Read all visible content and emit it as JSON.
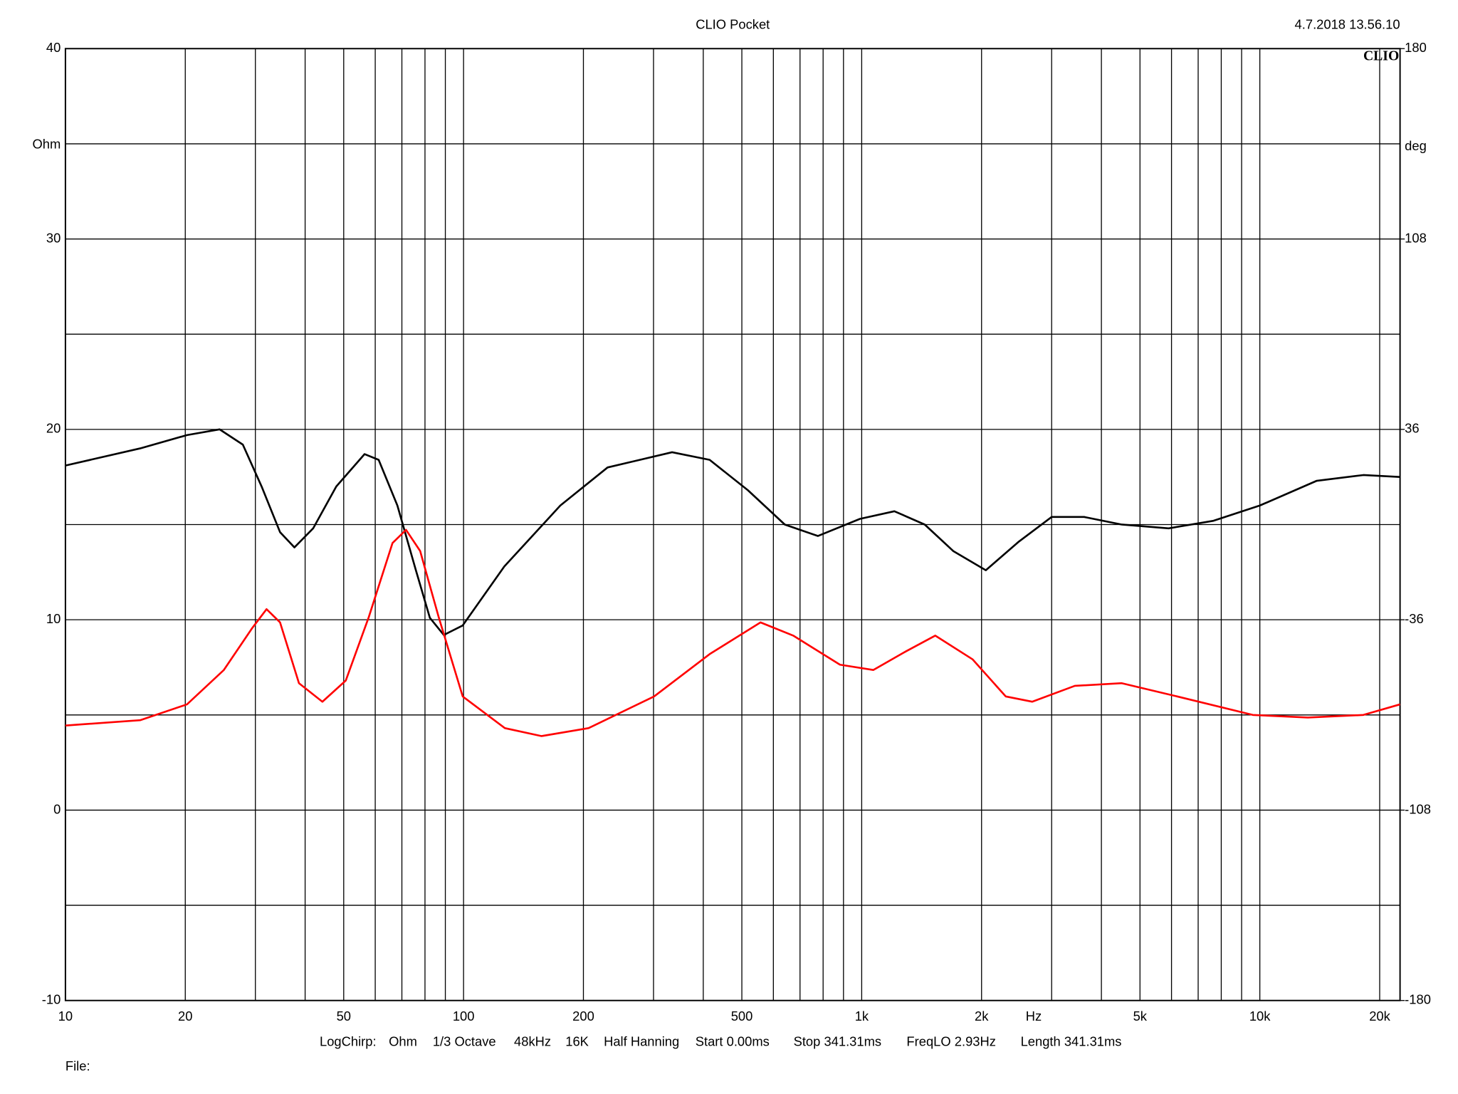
{
  "chart_data": {
    "type": "line",
    "title": "CLIO Pocket",
    "timestamp": "4.7.2018 13.56.10",
    "logo": "CLIO",
    "y_label": "Ohm",
    "y2_label": "deg",
    "x_unit": "Hz",
    "settings": [
      "LogChirp:",
      "Ohm",
      "1/3 Octave",
      "48kHz",
      "16K",
      "Half Hanning",
      "Start 0.00ms",
      "Stop 341.31ms",
      "FreqLO 2.93Hz",
      "Length 341.31ms"
    ],
    "file_label": "File:",
    "xscale": "log",
    "xlim": [
      10,
      22500
    ],
    "xticks": [
      10,
      20,
      50,
      100,
      200,
      500,
      {
        "value": 1000,
        "label": "1k"
      },
      {
        "value": 2000,
        "label": "2k"
      },
      {
        "value": 5000,
        "label": "5k"
      },
      {
        "value": 10000,
        "label": "10k"
      },
      {
        "value": 20000,
        "label": "20k"
      }
    ],
    "xgrid": [
      30,
      40,
      60,
      70,
      80,
      90,
      300,
      400,
      600,
      700,
      800,
      900,
      3000,
      4000,
      6000,
      7000,
      8000,
      9000
    ],
    "ylim": [
      -10,
      40
    ],
    "yticks": [
      -10,
      0,
      10,
      20,
      30,
      40
    ],
    "ygrid": [
      -5,
      5,
      15,
      25,
      35
    ],
    "y2lim": [
      -180,
      180
    ],
    "y2ticks": [
      180,
      108,
      36,
      -36,
      -108,
      -180
    ],
    "grid": true,
    "series": [
      {
        "name": "Impedance",
        "color": "#000000",
        "axis": "y",
        "x": [
          10,
          15.4,
          20.2,
          24.4,
          27.9,
          31.1,
          34.6,
          37.6,
          41.9,
          47.9,
          56.4,
          61.2,
          68.2,
          75.9,
          82.3,
          89.2,
          99.5,
          126.6,
          175,
          230,
          334,
          415,
          518,
          641,
          776,
          990,
          1208,
          1440,
          1700,
          2050,
          2480,
          3000,
          3620,
          4500,
          5900,
          7650,
          10000,
          13900,
          18200,
          22500
        ],
        "values": [
          18.1,
          19.0,
          19.7,
          20.0,
          19.2,
          17.0,
          14.6,
          13.8,
          14.8,
          17.0,
          18.7,
          18.4,
          16.0,
          12.6,
          10.1,
          9.2,
          9.7,
          12.8,
          16.0,
          18.0,
          18.8,
          18.4,
          16.8,
          15.0,
          14.4,
          15.3,
          15.7,
          15.0,
          13.6,
          12.6,
          14.1,
          15.4,
          15.4,
          15.0,
          14.8,
          15.2,
          16.0,
          17.3,
          17.6,
          17.5
        ]
      },
      {
        "name": "Phase",
        "color": "#ff0000",
        "axis": "y2",
        "x": [
          10,
          15.4,
          20.2,
          25,
          29.5,
          32,
          34.6,
          38.6,
          44.2,
          50.6,
          57.8,
          66.3,
          71.7,
          77.8,
          86.6,
          99.5,
          127,
          157,
          206,
          301,
          415,
          557,
          673,
          882,
          1070,
          1290,
          1530,
          1900,
          2300,
          2680,
          3430,
          4500,
          6200,
          9600,
          13200,
          18200,
          22500
        ],
        "values": [
          -76,
          -74,
          -68,
          -55,
          -39,
          -32,
          -37,
          -60,
          -67,
          -59,
          -35,
          -7,
          -2,
          -10,
          -35,
          -65,
          -77,
          -80,
          -77,
          -65,
          -49,
          -37,
          -42,
          -53,
          -55,
          -48,
          -42,
          -51,
          -65,
          -67,
          -61,
          -60,
          -65,
          -72,
          -73,
          -72,
          -68
        ]
      }
    ]
  }
}
